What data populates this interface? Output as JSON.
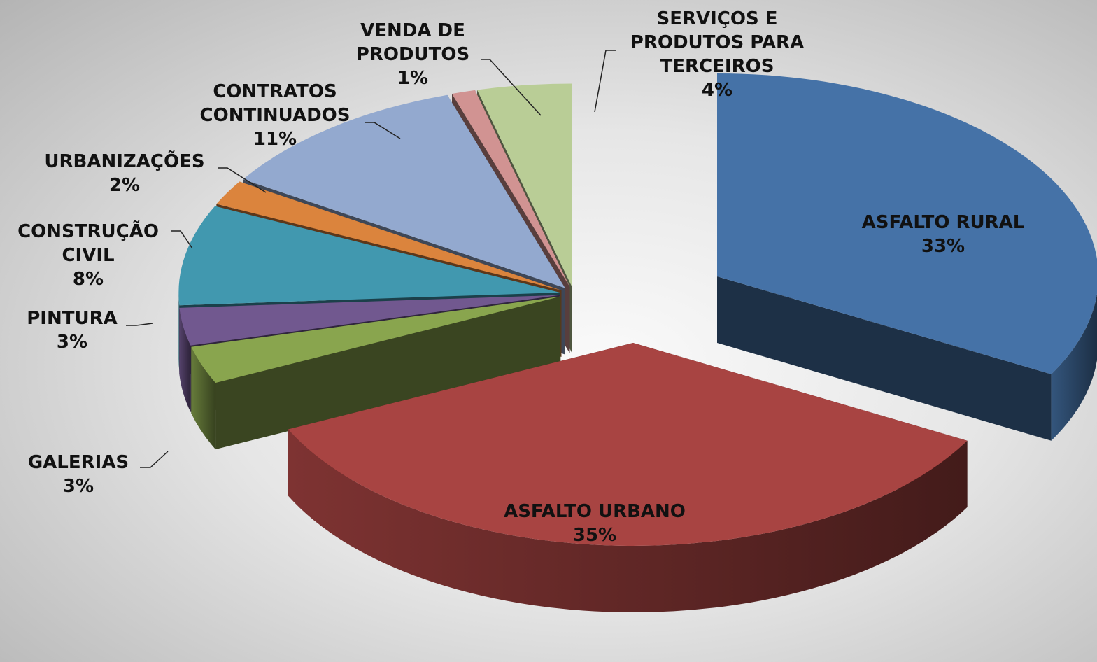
{
  "chart_data": {
    "type": "pie3d",
    "categories": [
      "ASFALTO RURAL",
      "ASFALTO URBANO",
      "GALERIAS",
      "PINTURA",
      "CONSTRUÇÃO CIVIL",
      "URBANIZAÇÕES",
      "CONTRATOS CONTINUADOS",
      "VENDA DE PRODUTOS",
      "SERVIÇOS E PRODUTOS PARA TERCEIROS"
    ],
    "values": [
      33,
      35,
      3,
      3,
      8,
      2,
      11,
      1,
      4
    ],
    "value_labels": [
      "33%",
      "35%",
      "3%",
      "3%",
      "8%",
      "2%",
      "11%",
      "1%",
      "4%"
    ],
    "colors": [
      "#4572a7",
      "#a84442",
      "#89a54e",
      "#71588f",
      "#4198af",
      "#db843d",
      "#93a9cf",
      "#d19392",
      "#b9cd96"
    ]
  }
}
